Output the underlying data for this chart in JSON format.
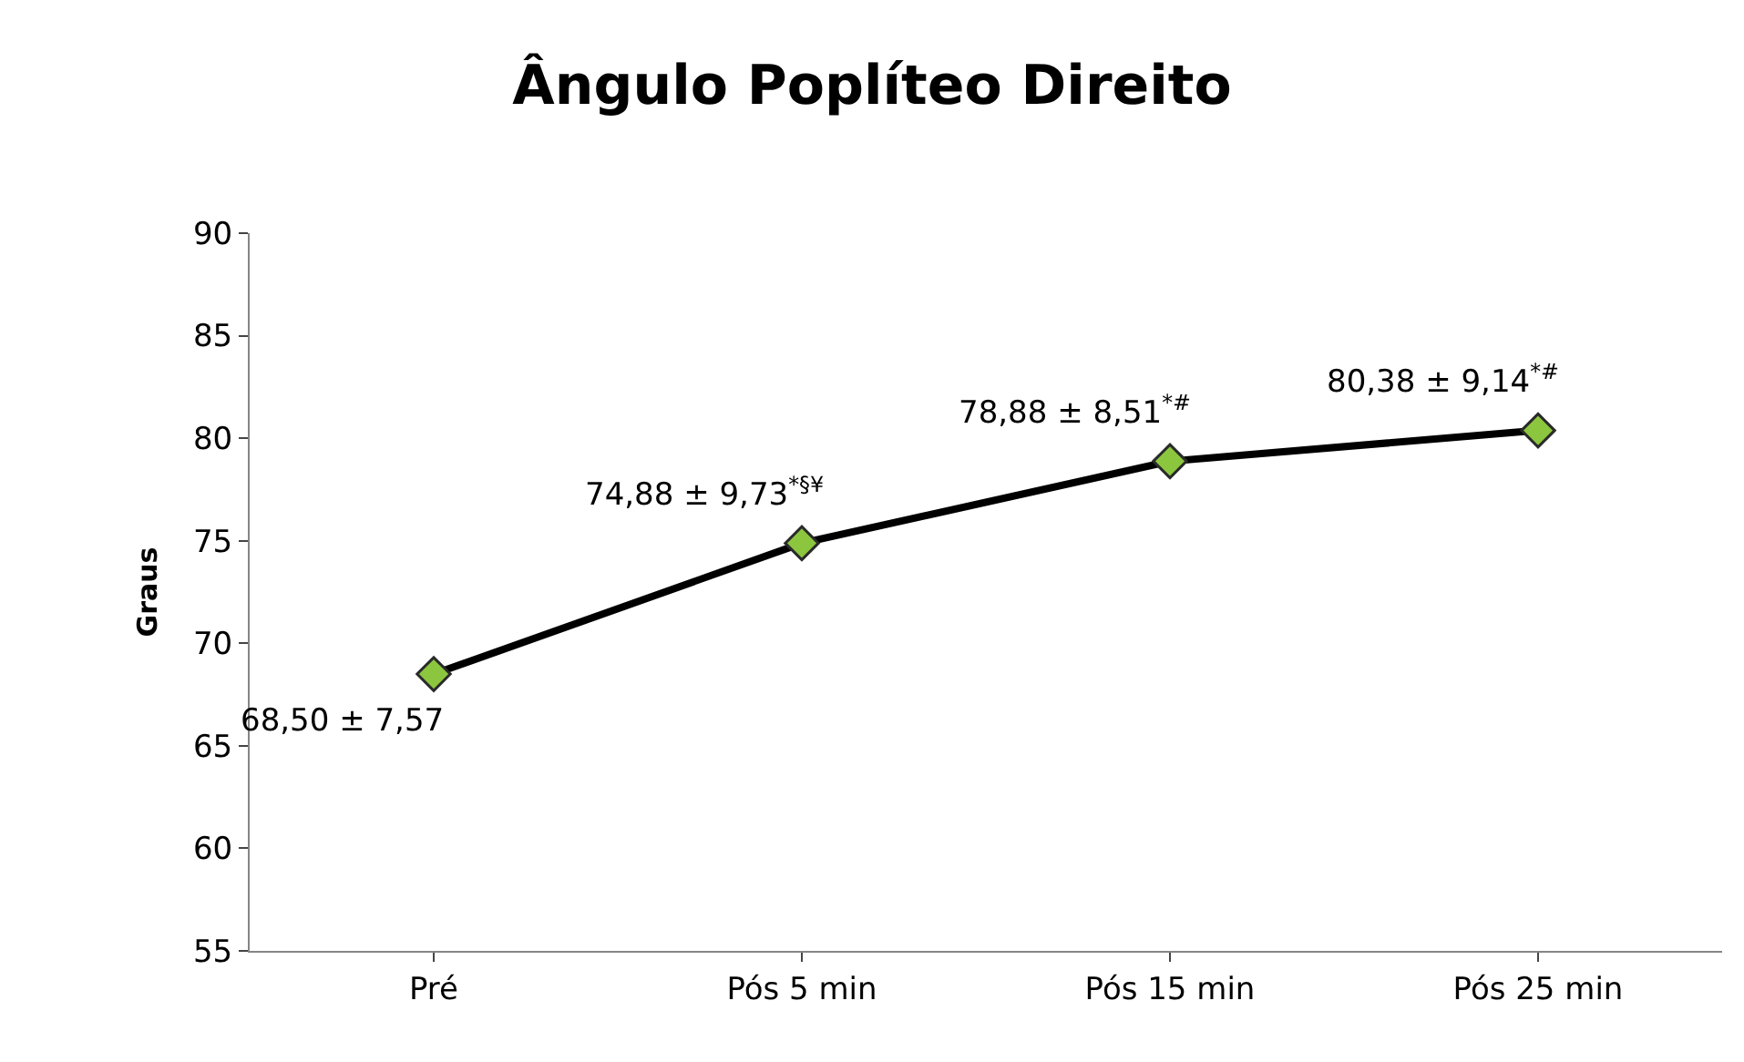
{
  "chart_data": {
    "type": "line",
    "title": "Ângulo Poplíteo Direito",
    "ylabel": "Graus",
    "categories": [
      "Pré",
      "Pós 5 min",
      "Pós 15 min",
      "Pós 25 min"
    ],
    "series": [
      {
        "color": "#000000",
        "colors": [
          "#8cc63f",
          "#8cc63f",
          "#8cc63f",
          "#8cc63f"
        ],
        "values": [
          68.5,
          74.88,
          78.88,
          80.38
        ],
        "value_labels": [
          "68,50 ± 7,57",
          "74,88 ± 9,73$^{*§¥}$",
          "78,88 ± 8,51$^{*#}$",
          "80,38 ± 9,14$^{*#}$"
        ]
      }
    ],
    "ylim": [
      55,
      90
    ],
    "yticks": [
      55,
      60,
      65,
      70,
      75,
      80,
      85,
      90
    ],
    "marker": "diamond",
    "line_style": "solid"
  }
}
